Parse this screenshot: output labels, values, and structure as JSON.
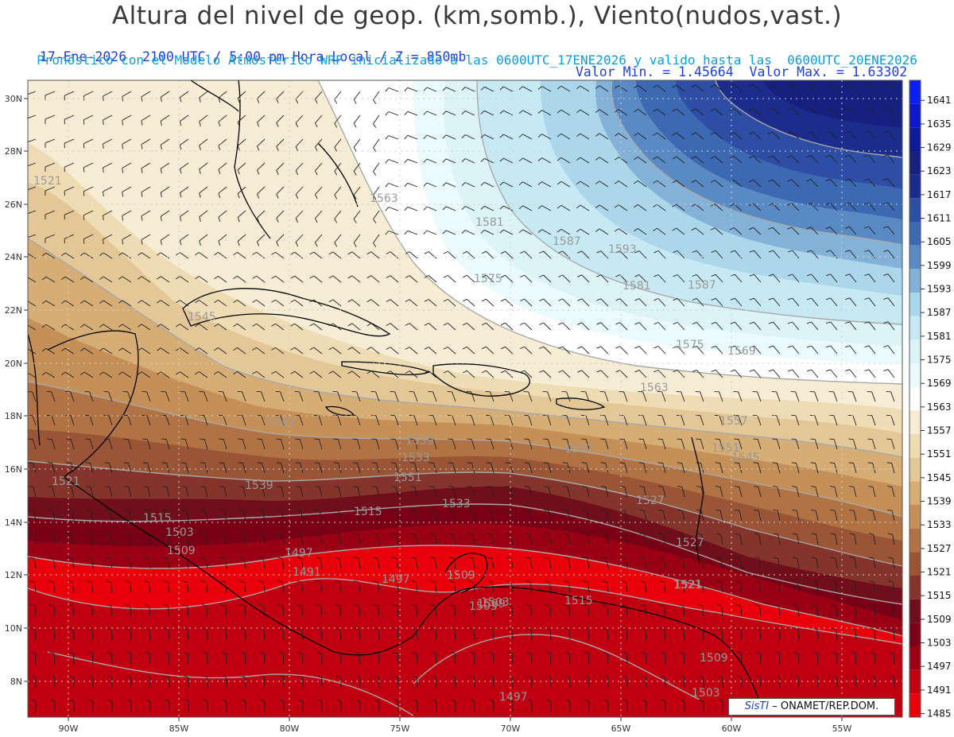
{
  "header": {
    "title": "Altura del nivel de geop. (km,somb.), Viento(nudos,vast.)",
    "line2_left": "17-Ene-2026  2100 UTC / 5:00 pm Hora Local / Z = 850mb",
    "line2_right": "Valor Min. = 1.45664  Valor Max. = 1.63302",
    "line3": "Pronóstico con el Modelo Atmosferico WRF inicializado a las 0600UTC_17ENE2026 y valido hasta las  0600UTC_20ENE2026"
  },
  "axes": {
    "lat_labels": [
      "30N",
      "28N",
      "26N",
      "24N",
      "22N",
      "20N",
      "18N",
      "16N",
      "14N",
      "12N",
      "10N",
      "8N"
    ],
    "lon_labels": [
      "90W",
      "85W",
      "80W",
      "75W",
      "70W",
      "65W",
      "60W",
      "55W"
    ]
  },
  "colorbar": {
    "levels": [
      "1641",
      "1635",
      "1629",
      "1623",
      "1617",
      "1611",
      "1605",
      "1599",
      "1593",
      "1587",
      "1581",
      "1575",
      "1569",
      "1563",
      "1557",
      "1551",
      "1545",
      "1539",
      "1533",
      "1527",
      "1521",
      "1515",
      "1509",
      "1503",
      "1497",
      "1491",
      "1485"
    ],
    "colors": [
      "#0a1ff0",
      "#0a18c8",
      "#0f1a9a",
      "#16207e",
      "#1c2c8c",
      "#2d4ea4",
      "#3d68b2",
      "#5a8ac4",
      "#84b1d7",
      "#acd7ea",
      "#c7e9f3",
      "#dcf3f8",
      "#eafafd",
      "#fefefe",
      "#f7ecd4",
      "#efdcb4",
      "#e4c797",
      "#d6ad74",
      "#c58f58",
      "#b17344",
      "#9a5436",
      "#84342b",
      "#700e1c",
      "#7a0016",
      "#9c0014",
      "#c00010",
      "#e8000a"
    ]
  },
  "contour_labels": [
    "1521",
    "1545",
    "1563",
    "1581",
    "1587",
    "1593",
    "1575",
    "1587",
    "1581",
    "1575",
    "1569",
    "1563",
    "1557",
    "1551",
    "1545",
    "1539",
    "1533",
    "1527",
    "1521",
    "1515",
    "1509",
    "1503",
    "1497",
    "1491",
    "1497",
    "1503",
    "1509",
    "1515",
    "1521",
    "1527",
    "1533",
    "1539",
    "1545",
    "1551",
    "1557",
    "1521",
    "1515",
    "1509",
    "1503",
    "1497",
    "1503",
    "1509"
  ],
  "credit": {
    "sis": "SisTI",
    "text": "– ONAMET/REP.DOM."
  }
}
